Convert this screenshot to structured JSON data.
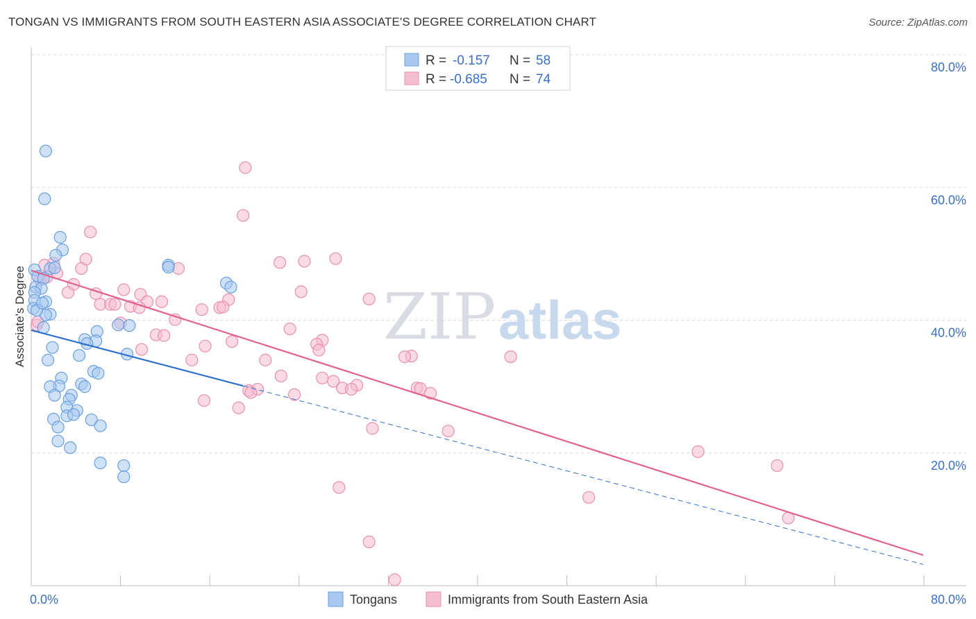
{
  "title": "TONGAN VS IMMIGRANTS FROM SOUTH EASTERN ASIA ASSOCIATE'S DEGREE CORRELATION CHART",
  "source": "Source: ZipAtlas.com",
  "watermark": {
    "zip": "ZIP",
    "atlas": "atlas"
  },
  "legend": {
    "r_label": "R =",
    "n_label": "N =",
    "rows": [
      {
        "r": "-0.157",
        "n": "58"
      },
      {
        "r": "-0.685",
        "n": "74"
      }
    ]
  },
  "bottom_legend": [
    "Tongans",
    "Immigrants from South Eastern Asia"
  ],
  "colors": {
    "blue_fill": "#a8c8f0",
    "blue_stroke": "#6a9fe0",
    "blue_line": "#2e6fce",
    "pink_fill": "#f6bcd0",
    "pink_stroke": "#e98fb0",
    "pink_line": "#e06090",
    "grid": "#d8d8d8",
    "axis_text": "#3a6fc4"
  },
  "chart_data": {
    "type": "scatter",
    "title": "TONGAN VS IMMIGRANTS FROM SOUTH EASTERN ASIA ASSOCIATE'S DEGREE CORRELATION CHART",
    "xlabel": "",
    "ylabel": "Associate's Degree",
    "xlim": [
      0,
      80
    ],
    "ylim": [
      0,
      80
    ],
    "x_tick_labels": [
      "0.0%",
      "80.0%"
    ],
    "y_tick_labels": [
      "80.0%",
      "60.0%",
      "40.0%",
      "20.0%"
    ],
    "y_ticks": [
      80,
      60,
      40,
      20
    ],
    "series": [
      {
        "name": "Tongans",
        "color": "blue",
        "r": -0.157,
        "n": 58,
        "trend": {
          "x0": 0,
          "y0": 38.5,
          "x1": 80,
          "y1": 3.2,
          "solid_until": 19
        },
        "points": [
          [
            1.3,
            65.5
          ],
          [
            1.2,
            58.3
          ],
          [
            2.6,
            52.5
          ],
          [
            2.8,
            50.6
          ],
          [
            2.2,
            49.8
          ],
          [
            1.7,
            47.8
          ],
          [
            0.3,
            47.6
          ],
          [
            0.6,
            46.6
          ],
          [
            1.1,
            46.3
          ],
          [
            0.4,
            45.0
          ],
          [
            0.9,
            44.8
          ],
          [
            0.3,
            44.2
          ],
          [
            0.3,
            43.0
          ],
          [
            1.3,
            42.8
          ],
          [
            0.2,
            41.8
          ],
          [
            1.7,
            40.9
          ],
          [
            1.3,
            40.8
          ],
          [
            1.1,
            38.9
          ],
          [
            7.8,
            39.3
          ],
          [
            8.8,
            39.2
          ],
          [
            5.9,
            38.3
          ],
          [
            4.8,
            37.1
          ],
          [
            5.8,
            36.9
          ],
          [
            5.0,
            36.5
          ],
          [
            1.9,
            35.9
          ],
          [
            8.6,
            34.9
          ],
          [
            4.3,
            34.7
          ],
          [
            1.5,
            34.0
          ],
          [
            5.6,
            32.3
          ],
          [
            6.0,
            32.0
          ],
          [
            2.7,
            31.3
          ],
          [
            4.5,
            30.4
          ],
          [
            2.5,
            30.1
          ],
          [
            4.8,
            30.0
          ],
          [
            1.7,
            30.0
          ],
          [
            2.1,
            28.7
          ],
          [
            3.6,
            28.7
          ],
          [
            3.4,
            28.1
          ],
          [
            3.2,
            26.9
          ],
          [
            4.1,
            26.4
          ],
          [
            3.2,
            25.6
          ],
          [
            3.8,
            25.8
          ],
          [
            2.0,
            25.1
          ],
          [
            5.4,
            25.0
          ],
          [
            6.2,
            24.1
          ],
          [
            2.4,
            23.9
          ],
          [
            2.4,
            21.8
          ],
          [
            3.5,
            20.8
          ],
          [
            6.2,
            18.5
          ],
          [
            8.3,
            18.1
          ],
          [
            8.3,
            16.4
          ],
          [
            12.3,
            48.3
          ],
          [
            17.5,
            45.6
          ],
          [
            17.9,
            45.0
          ],
          [
            12.3,
            48.0
          ],
          [
            0.5,
            41.5
          ],
          [
            1.0,
            42.6
          ],
          [
            2.1,
            47.9
          ]
        ]
      },
      {
        "name": "Immigrants from South Eastern Asia",
        "color": "pink",
        "r": -0.685,
        "n": 74,
        "trend": {
          "x0": 0,
          "y0": 47.5,
          "x1": 80,
          "y1": 4.6
        },
        "points": [
          [
            19.2,
            63.0
          ],
          [
            19.0,
            55.8
          ],
          [
            5.3,
            53.3
          ],
          [
            4.9,
            49.2
          ],
          [
            27.3,
            49.3
          ],
          [
            22.3,
            48.7
          ],
          [
            24.5,
            48.9
          ],
          [
            1.2,
            48.3
          ],
          [
            2.0,
            48.6
          ],
          [
            4.5,
            47.8
          ],
          [
            13.2,
            47.8
          ],
          [
            2.3,
            47.1
          ],
          [
            1.4,
            46.5
          ],
          [
            0.8,
            46.1
          ],
          [
            3.8,
            45.4
          ],
          [
            8.3,
            44.6
          ],
          [
            24.2,
            44.3
          ],
          [
            3.3,
            44.2
          ],
          [
            5.8,
            44.0
          ],
          [
            9.8,
            43.9
          ],
          [
            17.7,
            43.1
          ],
          [
            30.3,
            43.2
          ],
          [
            10.4,
            42.8
          ],
          [
            11.7,
            42.8
          ],
          [
            8.9,
            42.1
          ],
          [
            6.2,
            42.4
          ],
          [
            7.1,
            42.4
          ],
          [
            16.9,
            41.9
          ],
          [
            17.2,
            42.0
          ],
          [
            15.3,
            41.6
          ],
          [
            9.7,
            41.9
          ],
          [
            7.5,
            42.4
          ],
          [
            12.9,
            40.1
          ],
          [
            0.5,
            39.3
          ],
          [
            8.0,
            39.6
          ],
          [
            23.2,
            38.7
          ],
          [
            11.2,
            37.8
          ],
          [
            11.9,
            37.7
          ],
          [
            26.1,
            37.0
          ],
          [
            18.0,
            36.8
          ],
          [
            15.6,
            36.1
          ],
          [
            25.6,
            36.4
          ],
          [
            9.9,
            35.6
          ],
          [
            25.8,
            35.5
          ],
          [
            34.1,
            34.6
          ],
          [
            33.5,
            34.5
          ],
          [
            43.0,
            34.5
          ],
          [
            14.4,
            34.0
          ],
          [
            21.0,
            34.0
          ],
          [
            22.4,
            31.6
          ],
          [
            26.1,
            31.3
          ],
          [
            27.1,
            30.8
          ],
          [
            29.2,
            30.2
          ],
          [
            27.9,
            29.8
          ],
          [
            28.7,
            29.6
          ],
          [
            19.5,
            29.4
          ],
          [
            20.3,
            29.6
          ],
          [
            19.7,
            29.1
          ],
          [
            34.6,
            29.8
          ],
          [
            34.9,
            29.7
          ],
          [
            35.8,
            29.0
          ],
          [
            23.6,
            28.8
          ],
          [
            15.5,
            27.9
          ],
          [
            18.6,
            26.8
          ],
          [
            30.6,
            23.7
          ],
          [
            37.4,
            23.3
          ],
          [
            59.8,
            20.2
          ],
          [
            66.9,
            18.1
          ],
          [
            27.6,
            14.8
          ],
          [
            50.0,
            13.3
          ],
          [
            67.9,
            10.2
          ],
          [
            30.3,
            6.6
          ],
          [
            32.6,
            0.9
          ],
          [
            0.6,
            39.8
          ]
        ]
      }
    ]
  }
}
